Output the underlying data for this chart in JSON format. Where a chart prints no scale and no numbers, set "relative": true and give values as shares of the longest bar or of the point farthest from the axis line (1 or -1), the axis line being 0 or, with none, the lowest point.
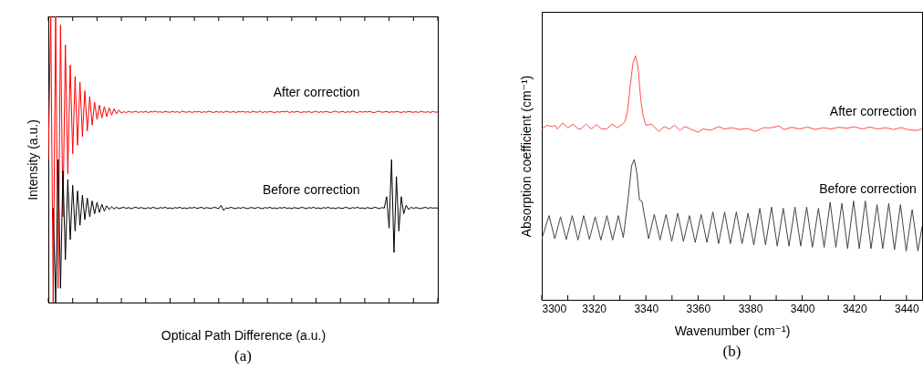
{
  "chart_data": [
    {
      "type": "line",
      "relative": true,
      "xlabel": "Optical Path Difference (a.u.)",
      "ylabel": "Intensity (a.u.)",
      "annotations": [
        "(a)"
      ],
      "categories": [
        null,
        null,
        null,
        null,
        null,
        null,
        null,
        null,
        null,
        null,
        null,
        null,
        null,
        null,
        null,
        null,
        null,
        null,
        null,
        null,
        null,
        null,
        null,
        null,
        null,
        null,
        null,
        null,
        null,
        null,
        null,
        null,
        null,
        null,
        null,
        null,
        null,
        null,
        null,
        null,
        null,
        null,
        null,
        null,
        null,
        null,
        null,
        null,
        null,
        null,
        null,
        null,
        null,
        null,
        null,
        null,
        null,
        null,
        null,
        null,
        null,
        null,
        null,
        null,
        null,
        null,
        null,
        null,
        null,
        null,
        null,
        null,
        null,
        null,
        null,
        null,
        null,
        null,
        null,
        null,
        null,
        null,
        null,
        null,
        null,
        null,
        null,
        null,
        null,
        null,
        null,
        null,
        null,
        null,
        null,
        null,
        null,
        null,
        null,
        null,
        null,
        null,
        null,
        null,
        null,
        null,
        null,
        null,
        null,
        null,
        null,
        null,
        null,
        null,
        null,
        null,
        null,
        null,
        null,
        null,
        null,
        null,
        null,
        null,
        null,
        null,
        null,
        null,
        null,
        null,
        null,
        null,
        null,
        null,
        null,
        null,
        null,
        null,
        null,
        null,
        null,
        null,
        null,
        null,
        null,
        null,
        null,
        null,
        null,
        null,
        null,
        null,
        null,
        null,
        null,
        null,
        null,
        null,
        null,
        null,
        null
      ],
      "series": [
        {
          "name": "After correction",
          "color": "#ff0000",
          "values": [
            0.5,
            1,
            0,
            1,
            0.05,
            0.97,
            0.3,
            0.9,
            0.45,
            0.83,
            0.52,
            0.79,
            0.55,
            0.77,
            0.58,
            0.74,
            0.6,
            0.72,
            0.62,
            0.7,
            0.64,
            0.69,
            0.645,
            0.685,
            0.65,
            0.68,
            0.655,
            0.677,
            0.66,
            0.673,
            0.662,
            0.667,
            0.664,
            0.668,
            0.665,
            0.666,
            0.669,
            0.664,
            0.667,
            0.665,
            0.668,
            0.664,
            0.667,
            0.666,
            0.669,
            0.665,
            0.667,
            0.664,
            0.668,
            0.666,
            0.665,
            0.668,
            0.665,
            0.667,
            0.664,
            0.669,
            0.666,
            0.665,
            0.668,
            0.664,
            0.667,
            0.666,
            0.668,
            0.664,
            0.667,
            0.665,
            0.669,
            0.666,
            0.664,
            0.668,
            0.665,
            0.667,
            0.664,
            0.669,
            0.666,
            0.665,
            0.668,
            0.664,
            0.667,
            0.666,
            0.668,
            0.665,
            0.667,
            0.664,
            0.668,
            0.666,
            0.665,
            0.669,
            0.664,
            0.667,
            0.665,
            0.668,
            0.666,
            0.664,
            0.667,
            0.665,
            0.668,
            0.666,
            0.669,
            0.664,
            0.667,
            0.665,
            0.668,
            0.666,
            0.664,
            0.667,
            0.665,
            0.668,
            0.664,
            0.666,
            0.669,
            0.664,
            0.667,
            0.665,
            0.668,
            0.666,
            0.664,
            0.667,
            0.669,
            0.665,
            0.666,
            0.668,
            0.664,
            0.667,
            0.665,
            0.669,
            0.666,
            0.664,
            0.668,
            0.665,
            0.667,
            0.666,
            0.668,
            0.665,
            0.664,
            0.667,
            0.669,
            0.665,
            0.666,
            0.668,
            0.664,
            0.667,
            0.665,
            0.668,
            0.666,
            0.664,
            0.667,
            0.665,
            0.668,
            0.666,
            0.665,
            0.667,
            0.664,
            0.668,
            0.666,
            0.665,
            0.667,
            0.664,
            0.668,
            0.665,
            0.666
          ]
        },
        {
          "name": "Before correction",
          "color": "#000000",
          "values": [
            null,
            null,
            0.33,
            0,
            0.5,
            0.05,
            0.46,
            0.15,
            0.43,
            0.22,
            0.41,
            0.25,
            0.39,
            0.27,
            0.375,
            0.29,
            0.365,
            0.3,
            0.355,
            0.31,
            0.35,
            0.315,
            0.343,
            0.32,
            0.338,
            0.325,
            0.335,
            0.327,
            0.333,
            0.328,
            0.331,
            0.333,
            0.329,
            0.332,
            0.328,
            0.331,
            0.333,
            0.329,
            0.332,
            0.33,
            0.328,
            0.332,
            0.329,
            0.333,
            0.33,
            0.328,
            0.332,
            0.33,
            0.333,
            0.329,
            0.331,
            0.328,
            0.332,
            0.33,
            0.333,
            0.329,
            0.331,
            0.328,
            0.332,
            0.33,
            0.333,
            0.329,
            0.331,
            0.333,
            0.328,
            0.332,
            0.33,
            0.329,
            0.333,
            0.331,
            0.328,
            0.34,
            0.322,
            0.331,
            0.329,
            0.333,
            0.33,
            0.328,
            0.332,
            0.329,
            0.333,
            0.33,
            0.328,
            0.332,
            0.331,
            0.329,
            0.333,
            0.33,
            0.328,
            0.332,
            0.33,
            0.333,
            0.329,
            0.331,
            0.328,
            0.332,
            0.33,
            0.333,
            0.329,
            0.331,
            0.328,
            0.332,
            0.33,
            0.329,
            0.333,
            0.331,
            0.328,
            0.332,
            0.33,
            0.333,
            0.329,
            0.331,
            0.328,
            0.332,
            0.33,
            0.333,
            0.329,
            0.331,
            0.328,
            0.332,
            0.33,
            0.329,
            0.333,
            0.331,
            0.328,
            0.332,
            0.33,
            0.333,
            0.329,
            0.331,
            0.328,
            0.332,
            0.33,
            0.329,
            0.333,
            0.331,
            0.328,
            0.332,
            0.33,
            0.37,
            0.26,
            0.5,
            0.175,
            0.44,
            0.25,
            0.37,
            0.31,
            0.34,
            0.325,
            0.333,
            0.329,
            0.332,
            0.33,
            0.328,
            0.331,
            0.333,
            0.329,
            0.332,
            0.33,
            0.331,
            0.33
          ]
        }
      ]
    },
    {
      "type": "line",
      "relative": true,
      "xlabel": "Wavenumber (cm⁻¹)",
      "ylabel": "Absorption coefficient (cm⁻¹)",
      "annotations": [
        "(b)"
      ],
      "xlim": [
        3300,
        3446
      ],
      "xticks": [
        3300,
        {
          "value": 3310,
          "label": null
        },
        3320,
        {
          "value": 3330,
          "label": null
        },
        3340,
        {
          "value": 3350,
          "label": null
        },
        3360,
        {
          "value": 3370,
          "label": null
        },
        3380,
        {
          "value": 3390,
          "label": null
        },
        3400,
        {
          "value": 3410,
          "label": null
        },
        3420,
        {
          "value": 3430,
          "label": null
        },
        3440
      ],
      "series": [
        {
          "name": "After correction",
          "color": "#ff4d4d",
          "x": [
            3300,
            3302,
            3304,
            3305,
            3306,
            3308,
            3310,
            3312,
            3314,
            3315,
            3317,
            3319,
            3321,
            3323,
            3325,
            3327,
            3329,
            3331,
            3332,
            3333,
            3334,
            3335,
            3336,
            3337,
            3338,
            3339,
            3340,
            3342,
            3344,
            3345,
            3347,
            3349,
            3351,
            3353,
            3355,
            3357,
            3360,
            3362,
            3365,
            3368,
            3370,
            3373,
            3376,
            3379,
            3382,
            3385,
            3388,
            3391,
            3393,
            3396,
            3399,
            3402,
            3405,
            3408,
            3411,
            3414,
            3417,
            3420,
            3423,
            3426,
            3429,
            3432,
            3435,
            3438,
            3441,
            3444,
            3446
          ],
          "values": [
            0.7,
            0.715,
            0.71,
            0.715,
            0.7,
            0.725,
            0.705,
            0.72,
            0.7,
            0.7,
            0.72,
            0.7,
            0.718,
            0.7,
            0.7,
            0.72,
            0.705,
            0.72,
            0.73,
            0.78,
            0.88,
            0.97,
            1.0,
            0.95,
            0.82,
            0.75,
            0.715,
            0.72,
            0.7,
            0.69,
            0.71,
            0.7,
            0.715,
            0.695,
            0.71,
            0.7,
            0.687,
            0.7,
            0.695,
            0.71,
            0.7,
            0.705,
            0.698,
            0.702,
            0.69,
            0.705,
            0.705,
            0.712,
            0.698,
            0.707,
            0.7,
            0.708,
            0.698,
            0.705,
            0.7,
            0.707,
            0.703,
            0.709,
            0.7,
            0.708,
            0.7,
            0.705,
            0.698,
            0.706,
            0.696,
            0.694,
            0.7
          ]
        },
        {
          "name": "Before correction",
          "color": "#444444",
          "x": [
            3300,
            3302.8,
            3305,
            3307.2,
            3309.4,
            3311.7,
            3313.9,
            3316.1,
            3318.3,
            3320.5,
            3322.7,
            3325.0,
            3327.2,
            3329.4,
            3331.3,
            3333,
            3334.5,
            3335.5,
            3336.5,
            3337.5,
            3338.5,
            3339.5,
            3341,
            3343.2,
            3345.4,
            3347.7,
            3349.9,
            3352.2,
            3354.4,
            3356.7,
            3358.9,
            3361.2,
            3363.4,
            3365.7,
            3367.9,
            3370.2,
            3372.4,
            3374.7,
            3376.9,
            3379.2,
            3381.4,
            3383.7,
            3385.9,
            3388.2,
            3390.4,
            3392.7,
            3394.9,
            3397.2,
            3399.4,
            3401.7,
            3403.9,
            3406.2,
            3408.4,
            3410.7,
            3412.9,
            3415.2,
            3417.4,
            3419.7,
            3421.9,
            3424.2,
            3426.4,
            3428.7,
            3430.9,
            3433.2,
            3435.4,
            3437.7,
            3439.9,
            3442.2,
            3444.4,
            3446
          ],
          "values": [
            0.25,
            0.345,
            0.25,
            0.34,
            0.247,
            0.345,
            0.245,
            0.345,
            0.248,
            0.34,
            0.245,
            0.345,
            0.245,
            0.345,
            0.255,
            0.4,
            0.55,
            0.575,
            0.52,
            0.41,
            0.403,
            0.34,
            0.25,
            0.35,
            0.245,
            0.35,
            0.24,
            0.355,
            0.24,
            0.345,
            0.235,
            0.35,
            0.235,
            0.36,
            0.23,
            0.36,
            0.23,
            0.36,
            0.23,
            0.355,
            0.225,
            0.375,
            0.225,
            0.38,
            0.22,
            0.375,
            0.22,
            0.38,
            0.22,
            0.38,
            0.215,
            0.375,
            0.215,
            0.4,
            0.215,
            0.395,
            0.21,
            0.405,
            0.21,
            0.405,
            0.21,
            0.39,
            0.21,
            0.395,
            0.205,
            0.39,
            0.2,
            0.37,
            0.2,
            0.3
          ]
        }
      ]
    }
  ]
}
